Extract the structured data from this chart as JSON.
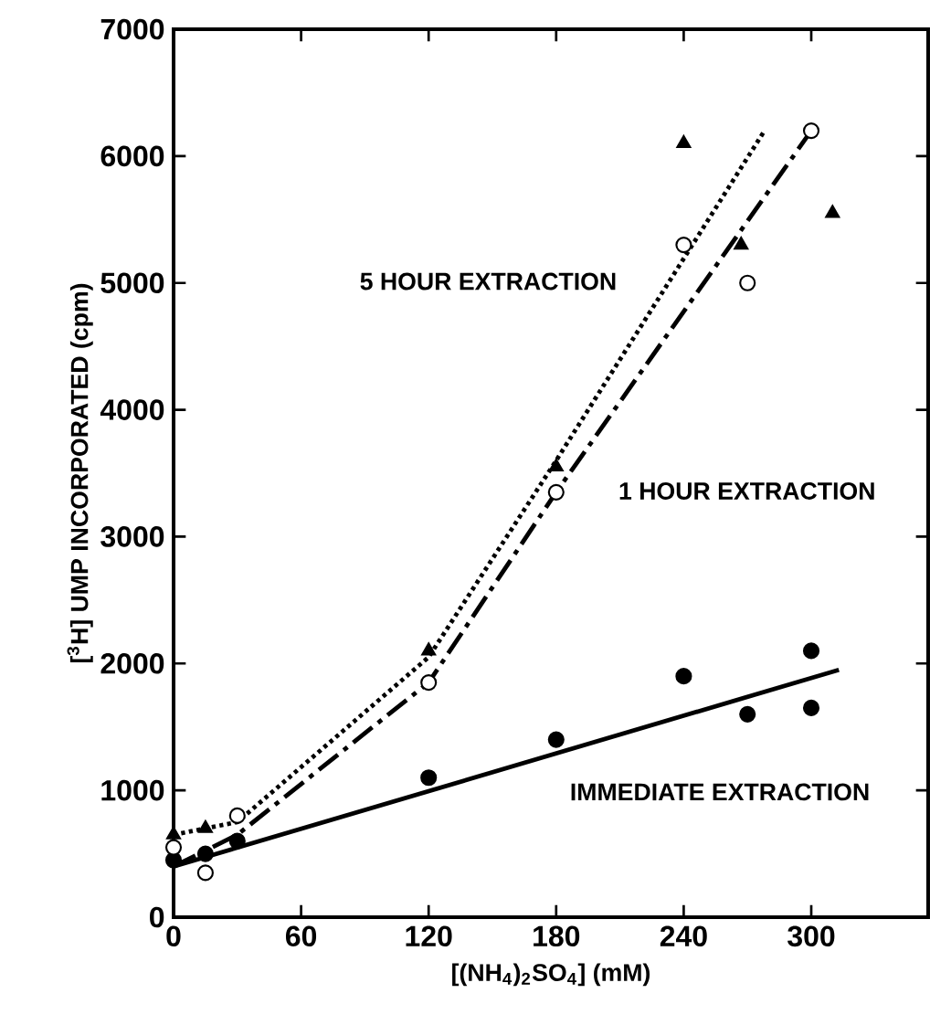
{
  "chart_data": {
    "type": "scatter",
    "xlabel": "[(NH$_{4}$)$_{2}$SO$_{4}$] (mM)",
    "ylabel": "[$^{3}$H] UMP INCORPORATED (cpm)",
    "xlim": [
      0,
      355
    ],
    "xticks": [
      0,
      60,
      120,
      180,
      240,
      300
    ],
    "ylim": [
      0,
      7000
    ],
    "yticks": [
      0,
      1000,
      2000,
      3000,
      4000,
      5000,
      6000,
      7000
    ],
    "grid": false,
    "series": [
      {
        "marker": "circle",
        "color": "#000000",
        "x": [
          0,
          15,
          30,
          120,
          180,
          240,
          270,
          300,
          300
        ],
        "values": [
          450,
          500,
          600,
          1100,
          1400,
          1900,
          1600,
          2100,
          1650
        ]
      },
      {
        "marker": "circle",
        "color": "#ffffff",
        "x": [
          0,
          15,
          30,
          120,
          180,
          240,
          270,
          300
        ],
        "values": [
          550,
          350,
          800,
          1850,
          3350,
          5300,
          5000,
          6200
        ]
      },
      {
        "marker": "triangle",
        "color": "#000000",
        "x": [
          0,
          15,
          120,
          180,
          240,
          267,
          310
        ],
        "values": [
          650,
          700,
          2100,
          3550,
          6100,
          5300,
          5550
        ]
      },
      {
        "type": "line",
        "line_style": "solid",
        "color": "#000000",
        "x": [
          0,
          313
        ],
        "values": [
          400,
          1950
        ]
      },
      {
        "type": "line",
        "line_style": "dashed",
        "color": "#000000",
        "x": [
          0,
          30,
          120,
          180,
          300
        ],
        "values": [
          400,
          650,
          1850,
          3350,
          6200
        ]
      },
      {
        "type": "line",
        "line_style": "dotted",
        "color": "#000000",
        "x": [
          0,
          30,
          120,
          180,
          278
        ],
        "values": [
          650,
          750,
          2050,
          3600,
          6200
        ]
      }
    ],
    "annotations": [
      "5 HOUR EXTRACTION",
      "1 HOUR EXTRACTION",
      "IMMEDIATE EXTRACTION"
    ]
  }
}
